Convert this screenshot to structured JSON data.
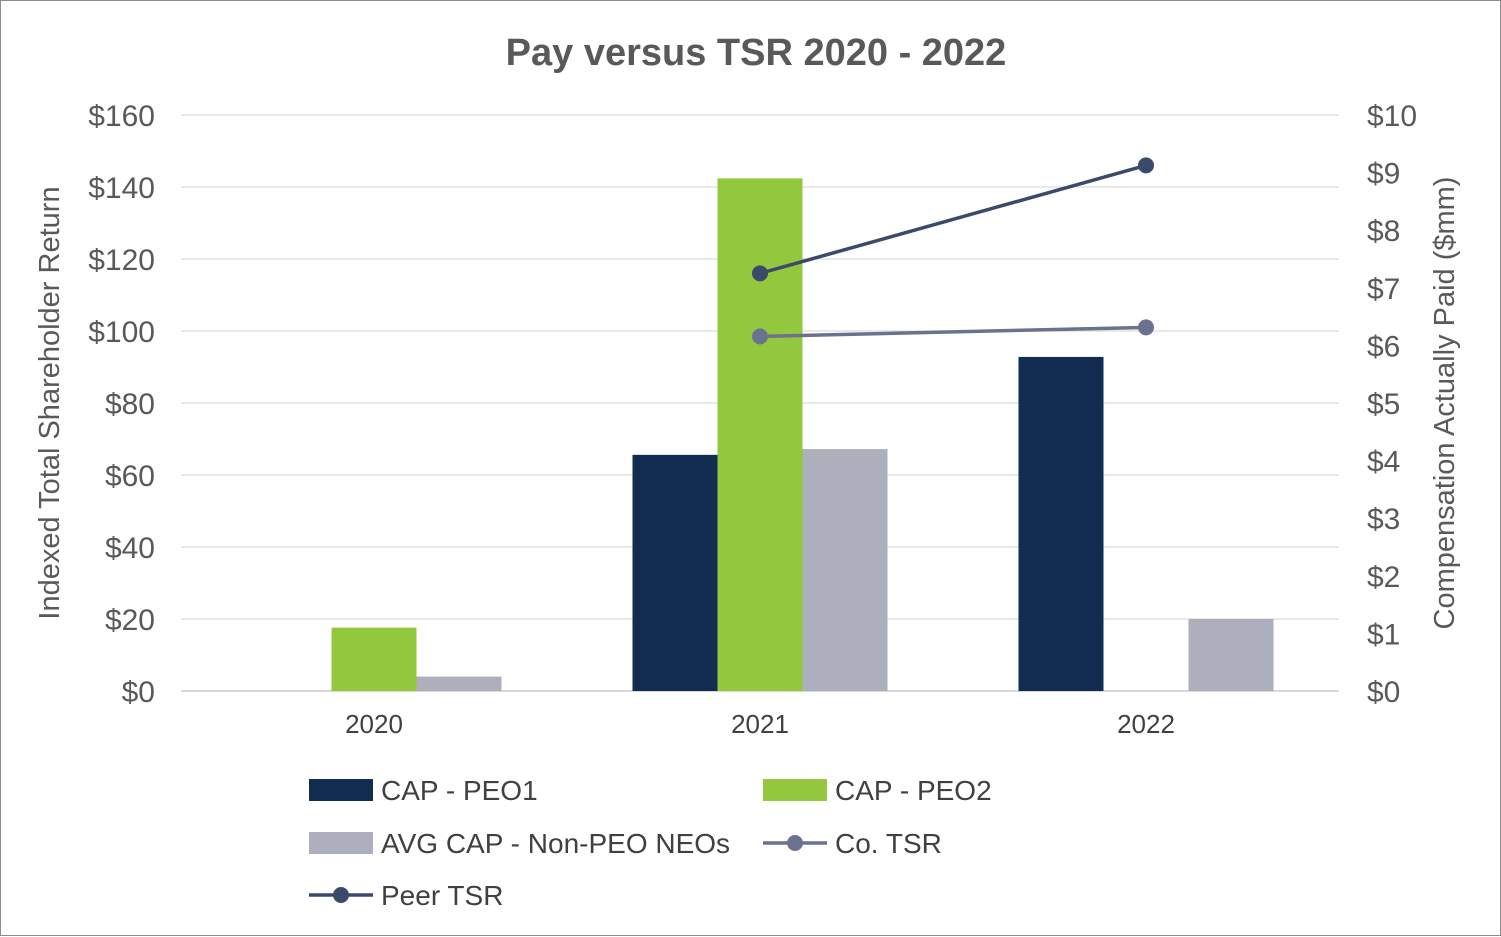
{
  "chart_data": {
    "type": "bar",
    "title": "Pay versus TSR 2020 - 2022",
    "categories": [
      "2020",
      "2021",
      "2022"
    ],
    "ylabel": "Indexed Total Shareholder Return",
    "y2label": "Compensation Actually Paid ($mm)",
    "ylim": [
      0,
      160
    ],
    "y2lim": [
      0,
      10
    ],
    "yticks": [
      "$0",
      "$20",
      "$40",
      "$60",
      "$80",
      "$100",
      "$120",
      "$140",
      "$160"
    ],
    "y2ticks": [
      "$0",
      "$1",
      "$2",
      "$3",
      "$4",
      "$5",
      "$6",
      "$7",
      "$8",
      "$9",
      "$10"
    ],
    "grid": true,
    "series": [
      {
        "name": "CAP - PEO1",
        "type": "bar",
        "axis": "right",
        "color": "#132c52",
        "values": [
          null,
          4.1,
          5.8
        ]
      },
      {
        "name": "CAP - PEO2",
        "type": "bar",
        "axis": "right",
        "color": "#93c83e",
        "values": [
          1.1,
          8.9,
          null
        ]
      },
      {
        "name": "AVG CAP - Non-PEO NEOs",
        "type": "bar",
        "axis": "right",
        "color": "#adafbd",
        "values": [
          0.25,
          4.2,
          1.25
        ]
      },
      {
        "name": "Co. TSR",
        "type": "line",
        "axis": "left",
        "color": "#6b7290",
        "values": [
          null,
          98.5,
          101
        ]
      },
      {
        "name": "Peer TSR",
        "type": "line",
        "axis": "left",
        "color": "#3b4a6b",
        "values": [
          null,
          116,
          146
        ]
      }
    ],
    "legend": "bottom"
  }
}
